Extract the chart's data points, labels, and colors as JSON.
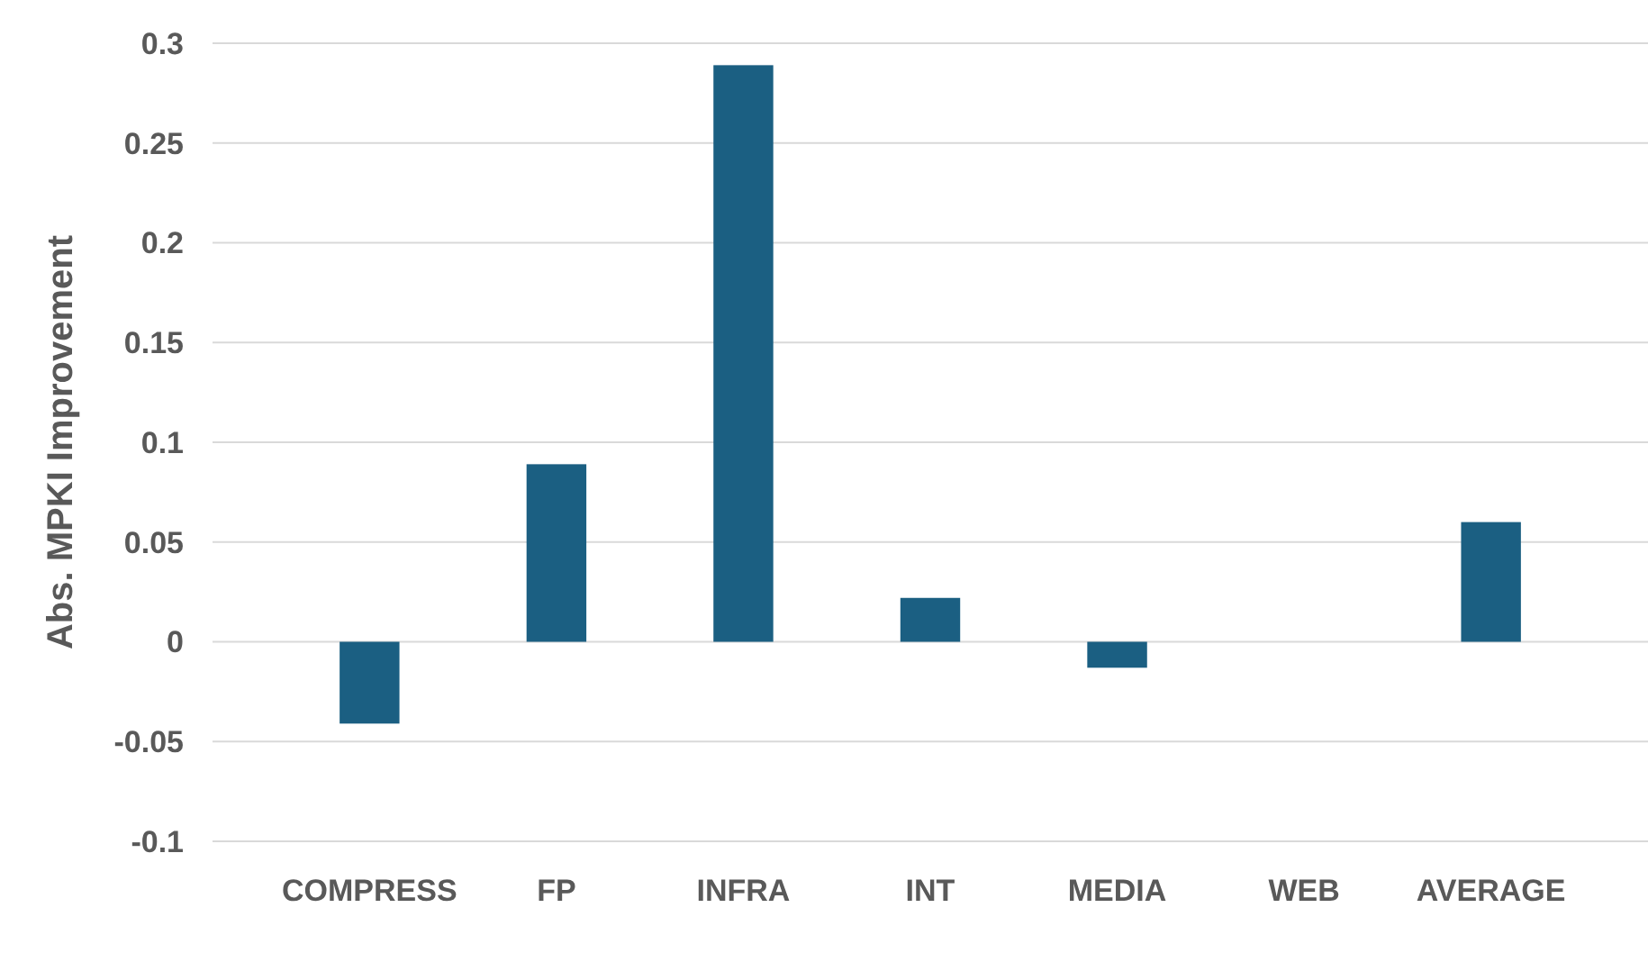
{
  "chart_data": {
    "type": "bar",
    "ylabel": "Abs. MPKI Improvement",
    "categories": [
      "COMPRESS",
      "FP",
      "INFRA",
      "INT",
      "MEDIA",
      "WEB",
      "AVERAGE"
    ],
    "values": [
      -0.041,
      0.089,
      0.289,
      0.022,
      -0.013,
      0,
      0.06
    ],
    "color": "#1b5f82",
    "ylim": [
      -0.1,
      0.3
    ],
    "yticks": [
      -0.1,
      -0.05,
      0,
      0.05,
      0.1,
      0.15,
      0.2,
      0.25,
      0.3
    ],
    "grid": "y"
  }
}
